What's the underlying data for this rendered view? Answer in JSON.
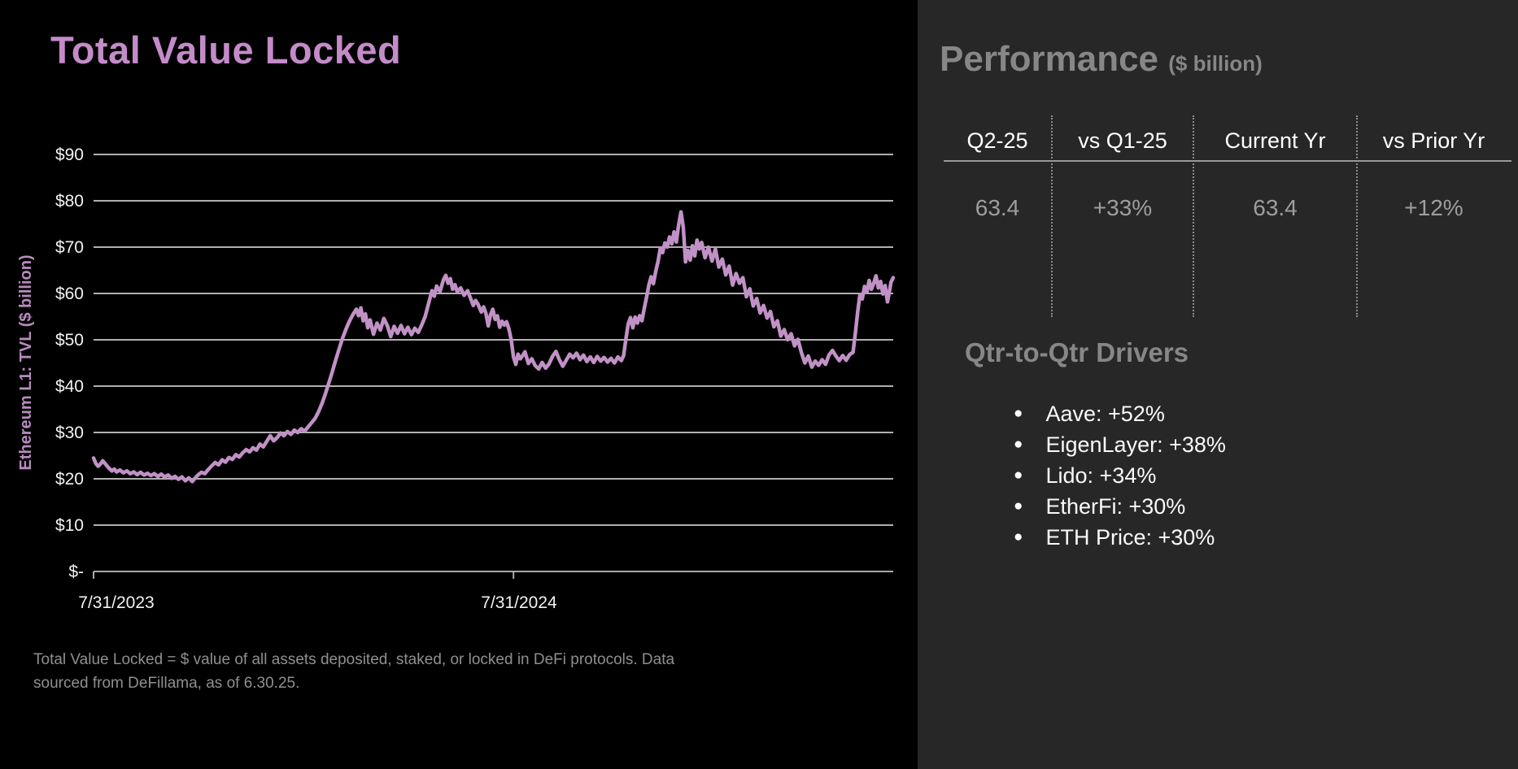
{
  "slide": {
    "title": "Total Value Locked",
    "footnote": "Total Value Locked = $ value of all assets deposited, staked, or locked in DeFi protocols. Data sourced from DeFillama, as of 6.30.25."
  },
  "performance": {
    "heading": "Performance",
    "heading_unit": "($ billion)",
    "columns": [
      {
        "header": "Q2-25",
        "value": "63.4"
      },
      {
        "header": "vs Q1-25",
        "value": "+33%"
      },
      {
        "header": "Current Yr",
        "value": "63.4"
      },
      {
        "header": "vs Prior Yr",
        "value": "+12%"
      }
    ]
  },
  "drivers": {
    "heading": "Qtr-to-Qtr Drivers",
    "items": [
      "Aave: +52%",
      "EigenLayer: +38%",
      "Lido: +34%",
      "EtherFi: +30%",
      "ETH Price: +30%"
    ]
  },
  "colors": {
    "left_background": "#000000",
    "right_background": "#272727",
    "title_purple": "#c48bc9",
    "line_purple": "#c191c6",
    "axis_label_purple": "#b78cbd",
    "gridline_gray": "#b0b0b0",
    "muted_heading_gray": "#878787",
    "value_gray": "#9e9e9e",
    "footnote_gray": "#8f8f8f",
    "tick_label_white": "#f2f2f2"
  },
  "chart_data": {
    "type": "line",
    "title": "Total Value Locked",
    "ylabel": "Ethereum L1: TVL ($ billion)",
    "xlabel": "",
    "ylim": [
      0,
      90
    ],
    "grid": true,
    "legend_position": "none",
    "y_tick_labels": [
      "$90",
      "$80",
      "$70",
      "$60",
      "$50",
      "$40",
      "$30",
      "$20",
      "$10",
      "$-"
    ],
    "x_tick_labels": [
      "7/31/2023",
      "7/31/2024"
    ],
    "x_tick_days": [
      0,
      366
    ],
    "x_range_days": [
      0,
      697
    ],
    "x_start_date": "7/31/2023",
    "x_end_date": "6/30/2025",
    "series": [
      {
        "name": "Ethereum L1 TVL ($ billion)",
        "points": [
          [
            0,
            24.5
          ],
          [
            2,
            23.3
          ],
          [
            4,
            22.7
          ],
          [
            6,
            23.2
          ],
          [
            8,
            23.9
          ],
          [
            10,
            23.3
          ],
          [
            13,
            22.4
          ],
          [
            16,
            21.7
          ],
          [
            18,
            22.1
          ],
          [
            20,
            21.5
          ],
          [
            23,
            21.9
          ],
          [
            26,
            21.3
          ],
          [
            29,
            21.7
          ],
          [
            32,
            21.1
          ],
          [
            35,
            21.5
          ],
          [
            38,
            20.9
          ],
          [
            41,
            21.4
          ],
          [
            44,
            20.8
          ],
          [
            47,
            21.2
          ],
          [
            50,
            20.7
          ],
          [
            53,
            21.1
          ],
          [
            56,
            20.5
          ],
          [
            59,
            21.0
          ],
          [
            62,
            20.4
          ],
          [
            65,
            20.8
          ],
          [
            68,
            20.1
          ],
          [
            71,
            20.5
          ],
          [
            74,
            19.9
          ],
          [
            77,
            20.4
          ],
          [
            80,
            19.6
          ],
          [
            83,
            20.2
          ],
          [
            86,
            19.4
          ],
          [
            88,
            20.0
          ],
          [
            91,
            20.8
          ],
          [
            94,
            21.4
          ],
          [
            97,
            21.1
          ],
          [
            100,
            22.0
          ],
          [
            103,
            22.8
          ],
          [
            106,
            23.5
          ],
          [
            109,
            23.0
          ],
          [
            112,
            24.1
          ],
          [
            115,
            23.6
          ],
          [
            118,
            24.6
          ],
          [
            121,
            24.2
          ],
          [
            124,
            25.2
          ],
          [
            127,
            24.7
          ],
          [
            130,
            25.6
          ],
          [
            133,
            26.3
          ],
          [
            136,
            25.8
          ],
          [
            139,
            26.7
          ],
          [
            142,
            26.2
          ],
          [
            145,
            27.5
          ],
          [
            148,
            26.9
          ],
          [
            151,
            28.1
          ],
          [
            154,
            29.3
          ],
          [
            157,
            28.2
          ],
          [
            160,
            28.9
          ],
          [
            163,
            29.9
          ],
          [
            166,
            29.3
          ],
          [
            169,
            30.2
          ],
          [
            172,
            29.6
          ],
          [
            175,
            30.5
          ],
          [
            178,
            30.0
          ],
          [
            181,
            30.8
          ],
          [
            184,
            30.3
          ],
          [
            187,
            31.2
          ],
          [
            190,
            32.1
          ],
          [
            193,
            33.0
          ],
          [
            196,
            34.4
          ],
          [
            199,
            36.2
          ],
          [
            202,
            38.3
          ],
          [
            205,
            40.6
          ],
          [
            208,
            43.0
          ],
          [
            211,
            45.6
          ],
          [
            214,
            48.0
          ],
          [
            217,
            50.3
          ],
          [
            220,
            52.3
          ],
          [
            223,
            54.0
          ],
          [
            226,
            55.4
          ],
          [
            229,
            56.6
          ],
          [
            231,
            55.2
          ],
          [
            233,
            56.9
          ],
          [
            235,
            54.1
          ],
          [
            237,
            55.6
          ],
          [
            239,
            52.6
          ],
          [
            241,
            54.3
          ],
          [
            244,
            51.2
          ],
          [
            247,
            53.6
          ],
          [
            250,
            52.1
          ],
          [
            253,
            54.6
          ],
          [
            256,
            53.1
          ],
          [
            259,
            50.7
          ],
          [
            262,
            52.9
          ],
          [
            265,
            51.4
          ],
          [
            268,
            53.1
          ],
          [
            271,
            51.3
          ],
          [
            274,
            52.7
          ],
          [
            277,
            51.1
          ],
          [
            280,
            52.5
          ],
          [
            283,
            51.6
          ],
          [
            286,
            53.2
          ],
          [
            289,
            55.0
          ],
          [
            292,
            57.8
          ],
          [
            295,
            60.6
          ],
          [
            297,
            59.4
          ],
          [
            299,
            61.6
          ],
          [
            302,
            60.4
          ],
          [
            305,
            63.0
          ],
          [
            307,
            63.9
          ],
          [
            309,
            62.2
          ],
          [
            311,
            63.2
          ],
          [
            313,
            60.9
          ],
          [
            315,
            61.9
          ],
          [
            317,
            60.3
          ],
          [
            320,
            61.2
          ],
          [
            323,
            59.6
          ],
          [
            326,
            60.6
          ],
          [
            329,
            58.7
          ],
          [
            331,
            57.4
          ],
          [
            333,
            58.5
          ],
          [
            335,
            57.7
          ],
          [
            338,
            56.0
          ],
          [
            340,
            57.1
          ],
          [
            342,
            55.7
          ],
          [
            344,
            53.0
          ],
          [
            346,
            55.4
          ],
          [
            348,
            56.6
          ],
          [
            350,
            54.4
          ],
          [
            352,
            55.2
          ],
          [
            354,
            52.7
          ],
          [
            356,
            54.0
          ],
          [
            358,
            53.2
          ],
          [
            360,
            53.9
          ],
          [
            362,
            52.4
          ],
          [
            364,
            50.0
          ],
          [
            366,
            46.3
          ],
          [
            368,
            44.7
          ],
          [
            370,
            46.9
          ],
          [
            372,
            45.9
          ],
          [
            374,
            46.6
          ],
          [
            376,
            47.4
          ],
          [
            379,
            44.9
          ],
          [
            382,
            45.9
          ],
          [
            385,
            44.4
          ],
          [
            388,
            43.7
          ],
          [
            391,
            45.1
          ],
          [
            394,
            43.9
          ],
          [
            397,
            44.8
          ],
          [
            400,
            46.4
          ],
          [
            403,
            47.5
          ],
          [
            406,
            45.7
          ],
          [
            409,
            44.3
          ],
          [
            412,
            45.6
          ],
          [
            415,
            46.9
          ],
          [
            418,
            46.1
          ],
          [
            421,
            47.1
          ],
          [
            424,
            45.7
          ],
          [
            427,
            46.7
          ],
          [
            430,
            45.3
          ],
          [
            433,
            46.3
          ],
          [
            436,
            45.1
          ],
          [
            439,
            46.4
          ],
          [
            442,
            45.4
          ],
          [
            445,
            46.2
          ],
          [
            448,
            45.2
          ],
          [
            451,
            46.0
          ],
          [
            454,
            45.0
          ],
          [
            457,
            46.3
          ],
          [
            460,
            45.5
          ],
          [
            462,
            46.6
          ],
          [
            464,
            50.2
          ],
          [
            466,
            53.4
          ],
          [
            468,
            54.8
          ],
          [
            470,
            52.6
          ],
          [
            472,
            54.9
          ],
          [
            474,
            53.6
          ],
          [
            476,
            55.2
          ],
          [
            478,
            54.1
          ],
          [
            480,
            56.8
          ],
          [
            482,
            59.2
          ],
          [
            484,
            61.8
          ],
          [
            486,
            63.6
          ],
          [
            488,
            62.1
          ],
          [
            490,
            64.8
          ],
          [
            492,
            66.9
          ],
          [
            494,
            69.8
          ],
          [
            496,
            68.8
          ],
          [
            498,
            70.9
          ],
          [
            500,
            70.0
          ],
          [
            502,
            72.2
          ],
          [
            504,
            70.7
          ],
          [
            506,
            73.3
          ],
          [
            508,
            71.1
          ],
          [
            510,
            74.9
          ],
          [
            512,
            77.6
          ],
          [
            514,
            74.3
          ],
          [
            516,
            66.8
          ],
          [
            518,
            69.3
          ],
          [
            520,
            67.2
          ],
          [
            522,
            70.3
          ],
          [
            524,
            68.1
          ],
          [
            526,
            71.5
          ],
          [
            528,
            69.6
          ],
          [
            530,
            71.0
          ],
          [
            533,
            67.7
          ],
          [
            536,
            70.0
          ],
          [
            539,
            67.0
          ],
          [
            542,
            69.6
          ],
          [
            545,
            65.7
          ],
          [
            548,
            67.4
          ],
          [
            551,
            64.0
          ],
          [
            554,
            65.9
          ],
          [
            557,
            61.8
          ],
          [
            560,
            64.3
          ],
          [
            563,
            62.2
          ],
          [
            566,
            63.4
          ],
          [
            569,
            59.3
          ],
          [
            572,
            61.0
          ],
          [
            575,
            57.3
          ],
          [
            578,
            58.9
          ],
          [
            581,
            55.8
          ],
          [
            584,
            57.4
          ],
          [
            587,
            54.7
          ],
          [
            590,
            56.1
          ],
          [
            593,
            52.8
          ],
          [
            596,
            54.1
          ],
          [
            599,
            50.8
          ],
          [
            602,
            52.2
          ],
          [
            605,
            50.0
          ],
          [
            608,
            51.3
          ],
          [
            611,
            48.7
          ],
          [
            614,
            50.1
          ],
          [
            617,
            47.2
          ],
          [
            620,
            45.0
          ],
          [
            623,
            46.5
          ],
          [
            626,
            44.1
          ],
          [
            629,
            45.4
          ],
          [
            632,
            44.5
          ],
          [
            635,
            45.7
          ],
          [
            638,
            44.7
          ],
          [
            641,
            46.7
          ],
          [
            644,
            47.7
          ],
          [
            647,
            46.5
          ],
          [
            650,
            45.5
          ],
          [
            653,
            46.6
          ],
          [
            656,
            45.6
          ],
          [
            659,
            46.8
          ],
          [
            662,
            47.3
          ],
          [
            664,
            51.5
          ],
          [
            666,
            56.0
          ],
          [
            668,
            59.8
          ],
          [
            670,
            58.8
          ],
          [
            672,
            61.5
          ],
          [
            674,
            60.2
          ],
          [
            676,
            62.8
          ],
          [
            678,
            60.9
          ],
          [
            680,
            62.2
          ],
          [
            682,
            63.8
          ],
          [
            684,
            61.2
          ],
          [
            686,
            62.6
          ],
          [
            688,
            59.9
          ],
          [
            690,
            61.7
          ],
          [
            692,
            58.2
          ],
          [
            694,
            60.9
          ],
          [
            695,
            62.4
          ],
          [
            697,
            63.4
          ]
        ]
      }
    ]
  }
}
